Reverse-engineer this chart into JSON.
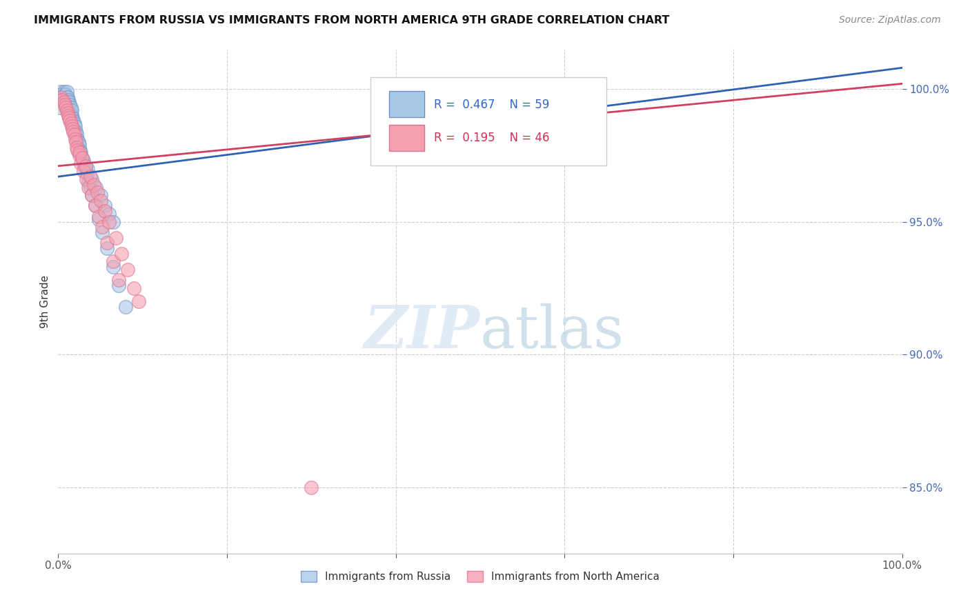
{
  "title": "IMMIGRANTS FROM RUSSIA VS IMMIGRANTS FROM NORTH AMERICA 9TH GRADE CORRELATION CHART",
  "source": "Source: ZipAtlas.com",
  "ylabel": "9th Grade",
  "ytick_values": [
    1.0,
    0.95,
    0.9,
    0.85
  ],
  "xlim": [
    0.0,
    1.0
  ],
  "ylim": [
    0.825,
    1.015
  ],
  "legend_russia": "Immigrants from Russia",
  "legend_north_america": "Immigrants from North America",
  "R_russia": 0.467,
  "N_russia": 59,
  "R_north_america": 0.195,
  "N_north_america": 46,
  "blue_color": "#a8c8e8",
  "pink_color": "#f4a0b0",
  "blue_scatter_edge": "#7090c0",
  "pink_scatter_edge": "#e07090",
  "blue_line_color": "#3060b0",
  "pink_line_color": "#d04060",
  "blue_line_x0": 0.0,
  "blue_line_y0": 0.967,
  "blue_line_x1": 1.0,
  "blue_line_y1": 1.008,
  "pink_line_x0": 0.0,
  "pink_line_y0": 0.971,
  "pink_line_x1": 1.0,
  "pink_line_y1": 1.002,
  "russia_x": [
    0.001,
    0.003,
    0.004,
    0.005,
    0.006,
    0.007,
    0.007,
    0.008,
    0.008,
    0.009,
    0.009,
    0.01,
    0.01,
    0.01,
    0.011,
    0.011,
    0.012,
    0.012,
    0.013,
    0.013,
    0.014,
    0.014,
    0.015,
    0.015,
    0.016,
    0.016,
    0.017,
    0.018,
    0.019,
    0.02,
    0.021,
    0.022,
    0.023,
    0.024,
    0.025,
    0.026,
    0.027,
    0.028,
    0.03,
    0.032,
    0.034,
    0.036,
    0.038,
    0.04,
    0.044,
    0.048,
    0.052,
    0.058,
    0.065,
    0.072,
    0.08,
    0.03,
    0.035,
    0.04,
    0.045,
    0.05,
    0.055,
    0.06,
    0.065
  ],
  "russia_y": [
    0.993,
    0.999,
    0.998,
    0.998,
    0.997,
    0.997,
    0.999,
    0.996,
    0.998,
    0.995,
    0.998,
    0.996,
    0.997,
    0.999,
    0.995,
    0.997,
    0.994,
    0.996,
    0.993,
    0.995,
    0.992,
    0.994,
    0.991,
    0.993,
    0.99,
    0.992,
    0.989,
    0.988,
    0.987,
    0.986,
    0.984,
    0.983,
    0.981,
    0.98,
    0.979,
    0.977,
    0.976,
    0.974,
    0.972,
    0.97,
    0.968,
    0.965,
    0.963,
    0.96,
    0.956,
    0.951,
    0.946,
    0.94,
    0.933,
    0.926,
    0.918,
    0.973,
    0.97,
    0.966,
    0.963,
    0.96,
    0.956,
    0.953,
    0.95
  ],
  "north_america_x": [
    0.003,
    0.005,
    0.007,
    0.008,
    0.009,
    0.01,
    0.011,
    0.012,
    0.013,
    0.014,
    0.015,
    0.016,
    0.017,
    0.018,
    0.019,
    0.02,
    0.021,
    0.022,
    0.023,
    0.025,
    0.027,
    0.03,
    0.033,
    0.036,
    0.04,
    0.044,
    0.048,
    0.052,
    0.058,
    0.065,
    0.072,
    0.025,
    0.028,
    0.032,
    0.038,
    0.042,
    0.046,
    0.05,
    0.055,
    0.06,
    0.068,
    0.075,
    0.082,
    0.09,
    0.095,
    0.3
  ],
  "north_america_y": [
    0.997,
    0.996,
    0.995,
    0.994,
    0.993,
    0.992,
    0.991,
    0.99,
    0.989,
    0.988,
    0.987,
    0.986,
    0.985,
    0.984,
    0.983,
    0.981,
    0.98,
    0.978,
    0.977,
    0.975,
    0.972,
    0.969,
    0.966,
    0.963,
    0.96,
    0.956,
    0.952,
    0.948,
    0.942,
    0.935,
    0.928,
    0.976,
    0.974,
    0.971,
    0.967,
    0.964,
    0.961,
    0.958,
    0.954,
    0.95,
    0.944,
    0.938,
    0.932,
    0.925,
    0.92,
    0.85
  ]
}
